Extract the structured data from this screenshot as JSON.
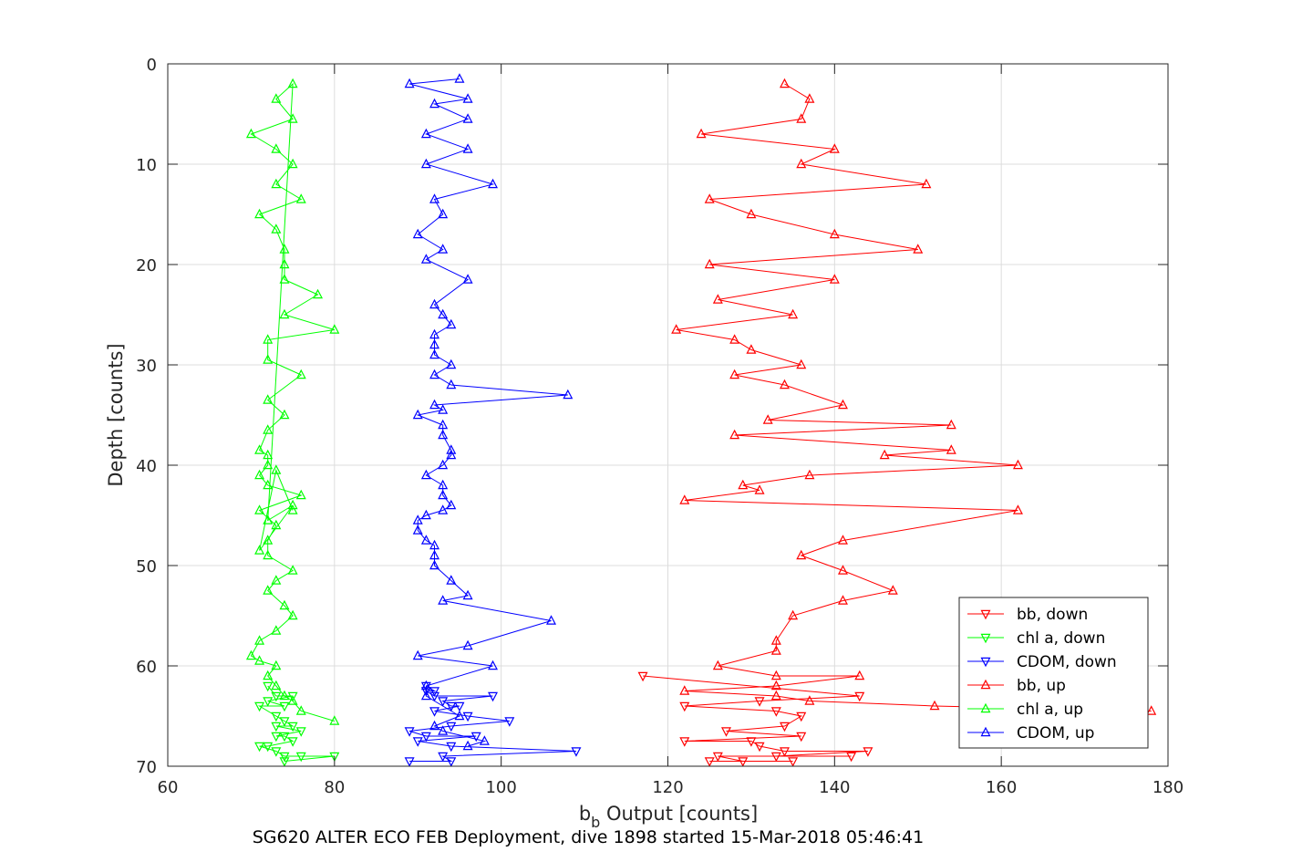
{
  "chart_data": {
    "type": "line",
    "xlabel_base": "b",
    "xlabel_sub": "b",
    "xlabel_rest": " Output [counts]",
    "ylabel": "Depth [counts]",
    "caption": "SG620 ALTER ECO FEB Deployment, dive 1898 started 15-Mar-2018 05:46:41",
    "xlim": [
      60,
      180
    ],
    "ylim": [
      0,
      70
    ],
    "y_reversed": true,
    "xticks": [
      "60",
      "80",
      "100",
      "120",
      "140",
      "160",
      "180"
    ],
    "yticks": [
      "0",
      "10",
      "20",
      "30",
      "40",
      "50",
      "60",
      "70"
    ],
    "grid": true,
    "legend_position": "bottom-right",
    "series": [
      {
        "name": "bb, down",
        "color": "#ff0000",
        "marker": "triangle-down",
        "x": [
          117,
          143,
          131,
          122,
          133,
          136,
          134,
          127,
          136,
          122,
          130,
          131,
          134,
          144,
          133,
          142,
          126,
          129,
          135,
          125
        ],
        "y": [
          61,
          63,
          63.5,
          64,
          64.5,
          65,
          66,
          66.5,
          67,
          67.5,
          67.5,
          68,
          68.5,
          68.5,
          69,
          69,
          69,
          69.5,
          69.5,
          69.5
        ]
      },
      {
        "name": "chl a, down",
        "color": "#00ff00",
        "marker": "triangle-down",
        "x": [
          72,
          73,
          75,
          72,
          74,
          71,
          73,
          74,
          75,
          73,
          76,
          73,
          74,
          75,
          72,
          71,
          73,
          74,
          76,
          80,
          74
        ],
        "y": [
          62,
          63,
          63,
          63.5,
          64,
          64,
          65,
          65.5,
          66,
          66,
          66.5,
          67,
          67,
          67.5,
          68,
          68,
          68.5,
          69,
          69,
          69,
          69.5
        ]
      },
      {
        "name": "CDOM, down",
        "color": "#0000ff",
        "marker": "triangle-down",
        "x": [
          91,
          92,
          91,
          92,
          99,
          93,
          94,
          95,
          92,
          96,
          101,
          94,
          89,
          91,
          97,
          90,
          94,
          109,
          93,
          94,
          89
        ],
        "y": [
          62,
          62.5,
          62.5,
          63,
          63,
          63.5,
          64,
          64,
          64.5,
          65,
          65.5,
          66,
          66.5,
          67,
          67,
          67.5,
          68,
          68.5,
          69,
          69.5,
          69.5
        ]
      },
      {
        "name": "bb, up",
        "color": "#ff0000",
        "marker": "triangle-up",
        "x": [
          178,
          152,
          137,
          133,
          122,
          133,
          143,
          133,
          126,
          133,
          133,
          135,
          141,
          147,
          141,
          136,
          141,
          162,
          122,
          131,
          129,
          137,
          162,
          146,
          154,
          128,
          154,
          132,
          141,
          134,
          128,
          136,
          130,
          128,
          121,
          135,
          126,
          140,
          125,
          150,
          140,
          130,
          125,
          151,
          136,
          140,
          124,
          136,
          137,
          134
        ],
        "y": [
          64.5,
          64,
          63.5,
          63,
          62.5,
          62,
          61,
          61,
          60,
          58.5,
          57.5,
          55,
          53.5,
          52.5,
          50.5,
          49,
          47.5,
          44.5,
          43.5,
          42.5,
          42,
          41,
          40,
          39,
          38.5,
          37,
          36,
          35.5,
          34,
          32,
          31,
          30,
          28.5,
          27.5,
          26.5,
          25,
          23.5,
          21.5,
          20,
          18.5,
          17,
          15,
          13.5,
          12,
          10,
          8.5,
          7,
          5.5,
          3.5,
          2
        ]
      },
      {
        "name": "chl a, up",
        "color": "#00ff00",
        "marker": "triangle-up",
        "x": [
          80,
          76,
          75,
          74,
          73,
          72,
          73,
          71,
          70,
          71,
          73,
          75,
          74,
          72,
          73,
          75,
          72,
          72,
          73,
          71,
          76,
          72,
          71,
          72,
          72,
          71,
          72,
          74,
          72,
          76,
          72,
          72,
          80,
          74,
          78,
          74,
          74,
          74,
          73,
          71,
          76,
          73,
          75,
          73,
          70,
          75,
          73,
          75,
          72,
          75,
          71,
          73,
          75
        ],
        "y": [
          65.5,
          64.5,
          63.5,
          63,
          62,
          61,
          60,
          59.5,
          59,
          57.5,
          56.5,
          55,
          54,
          52.5,
          51.5,
          50.5,
          49,
          47.5,
          46,
          44.5,
          43,
          42,
          41,
          40,
          39,
          38.5,
          36.5,
          35,
          33.5,
          31,
          29.5,
          27.5,
          26.5,
          25,
          23,
          21.5,
          20,
          18.5,
          16.5,
          15,
          13.5,
          12,
          10,
          8.5,
          7,
          5.5,
          3.5,
          2,
          45.5,
          44,
          48.5,
          40.5,
          44.5
        ]
      },
      {
        "name": "CDOM, up",
        "color": "#0000ff",
        "marker": "triangle-up",
        "x": [
          96,
          98,
          93,
          92,
          95,
          91,
          91,
          99,
          90,
          96,
          106,
          93,
          96,
          94,
          92,
          92,
          92,
          91,
          90,
          90,
          91,
          93,
          94,
          93,
          93,
          91,
          93,
          94,
          94,
          93,
          93,
          90,
          93,
          92,
          108,
          94,
          92,
          94,
          92,
          92,
          92,
          94,
          93,
          92,
          96,
          91,
          93,
          90,
          93,
          92,
          99,
          91,
          96,
          91,
          96,
          92,
          96,
          89,
          95
        ],
        "y": [
          68,
          67.5,
          66.5,
          66,
          65,
          63,
          62,
          60,
          59,
          58,
          55.5,
          53.5,
          53,
          51.5,
          50,
          49,
          48,
          47.5,
          46.5,
          45.5,
          45,
          44.5,
          44,
          43,
          42,
          41,
          40,
          39,
          38.5,
          37,
          36,
          35,
          34.5,
          34,
          33,
          32,
          31,
          30,
          29,
          28,
          27,
          26,
          25,
          24,
          21.5,
          19.5,
          18.5,
          17,
          15,
          13.5,
          12,
          10,
          8.5,
          7,
          5.5,
          4,
          3.5,
          2,
          1.5
        ]
      }
    ]
  }
}
